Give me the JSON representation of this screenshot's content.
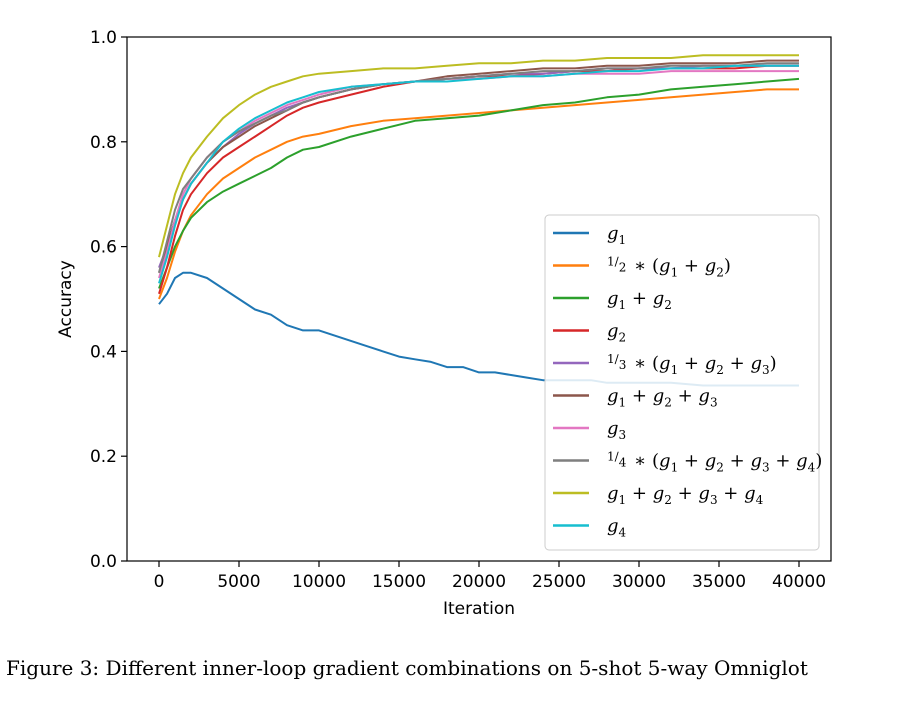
{
  "caption": "Figure 3: Different inner-loop gradient combinations on 5-shot 5-way Omniglot",
  "chart_data": {
    "type": "line",
    "title": "",
    "xlabel": "Iteration",
    "ylabel": "Accuracy",
    "xlim": [
      -2000,
      42000
    ],
    "ylim": [
      0.0,
      1.0
    ],
    "xticks": [
      0,
      5000,
      10000,
      15000,
      20000,
      25000,
      30000,
      35000,
      40000
    ],
    "xtick_labels": [
      "0",
      "5000",
      "10000",
      "15000",
      "20000",
      "25000",
      "30000",
      "35000",
      "40000"
    ],
    "yticks": [
      0.0,
      0.2,
      0.4,
      0.6,
      0.8,
      1.0
    ],
    "ytick_labels": [
      "0.0",
      "0.2",
      "0.4",
      "0.6",
      "0.8",
      "1.0"
    ],
    "grid": false,
    "legend_position": "lower-right",
    "series": [
      {
        "name": "g1",
        "legend_math": {
          "pre": "",
          "terms": [
            1
          ]
        },
        "color": "#1f77b4",
        "x": [
          0,
          500,
          1000,
          1500,
          2000,
          3000,
          4000,
          5000,
          6000,
          7000,
          8000,
          9000,
          10000,
          11000,
          12000,
          13000,
          14000,
          15000,
          16000,
          17000,
          18000,
          19000,
          20000,
          21000,
          22000,
          23000,
          24000,
          25000,
          26000,
          27000,
          28000,
          29000,
          30000,
          32000,
          34000,
          36000,
          38000,
          40000
        ],
        "y": [
          0.49,
          0.51,
          0.54,
          0.55,
          0.55,
          0.54,
          0.52,
          0.5,
          0.48,
          0.47,
          0.45,
          0.44,
          0.44,
          0.43,
          0.42,
          0.41,
          0.4,
          0.39,
          0.385,
          0.38,
          0.37,
          0.37,
          0.36,
          0.36,
          0.355,
          0.35,
          0.345,
          0.345,
          0.345,
          0.345,
          0.34,
          0.34,
          0.34,
          0.34,
          0.335,
          0.335,
          0.335,
          0.335
        ]
      },
      {
        "name": "1/2*(g1+g2)",
        "legend_math": {
          "pre": "1/2",
          "terms": [
            1,
            2
          ]
        },
        "color": "#ff7f0e",
        "x": [
          0,
          500,
          1000,
          1500,
          2000,
          3000,
          4000,
          5000,
          6000,
          7000,
          8000,
          9000,
          10000,
          12000,
          14000,
          16000,
          18000,
          20000,
          22000,
          24000,
          26000,
          28000,
          30000,
          32000,
          34000,
          36000,
          38000,
          40000
        ],
        "y": [
          0.5,
          0.54,
          0.59,
          0.63,
          0.66,
          0.7,
          0.73,
          0.75,
          0.77,
          0.785,
          0.8,
          0.81,
          0.815,
          0.83,
          0.84,
          0.845,
          0.85,
          0.855,
          0.86,
          0.865,
          0.87,
          0.875,
          0.88,
          0.885,
          0.89,
          0.895,
          0.9,
          0.9
        ]
      },
      {
        "name": "g1+g2",
        "legend_math": {
          "pre": "",
          "terms": [
            1,
            2
          ]
        },
        "color": "#2ca02c",
        "x": [
          0,
          500,
          1000,
          1500,
          2000,
          3000,
          4000,
          5000,
          6000,
          7000,
          8000,
          9000,
          10000,
          12000,
          14000,
          16000,
          18000,
          20000,
          22000,
          24000,
          26000,
          28000,
          30000,
          32000,
          34000,
          36000,
          38000,
          40000
        ],
        "y": [
          0.52,
          0.56,
          0.6,
          0.63,
          0.655,
          0.685,
          0.705,
          0.72,
          0.735,
          0.75,
          0.77,
          0.785,
          0.79,
          0.81,
          0.825,
          0.84,
          0.845,
          0.85,
          0.86,
          0.87,
          0.875,
          0.885,
          0.89,
          0.9,
          0.905,
          0.91,
          0.915,
          0.92
        ]
      },
      {
        "name": "g2",
        "legend_math": {
          "pre": "",
          "terms": [
            2
          ]
        },
        "color": "#d62728",
        "x": [
          0,
          500,
          1000,
          1500,
          2000,
          3000,
          4000,
          5000,
          6000,
          7000,
          8000,
          9000,
          10000,
          12000,
          14000,
          16000,
          18000,
          20000,
          22000,
          24000,
          26000,
          28000,
          30000,
          32000,
          34000,
          36000,
          38000,
          40000
        ],
        "y": [
          0.51,
          0.56,
          0.62,
          0.67,
          0.7,
          0.74,
          0.77,
          0.79,
          0.81,
          0.83,
          0.85,
          0.865,
          0.875,
          0.89,
          0.905,
          0.915,
          0.92,
          0.925,
          0.925,
          0.93,
          0.935,
          0.935,
          0.94,
          0.94,
          0.94,
          0.94,
          0.945,
          0.945
        ]
      },
      {
        "name": "1/3*(g1+g2+g3)",
        "legend_math": {
          "pre": "1/3",
          "terms": [
            1,
            2,
            3
          ]
        },
        "color": "#9467bd",
        "x": [
          0,
          500,
          1000,
          1500,
          2000,
          3000,
          4000,
          5000,
          6000,
          7000,
          8000,
          9000,
          10000,
          12000,
          14000,
          16000,
          18000,
          20000,
          22000,
          24000,
          26000,
          28000,
          30000,
          32000,
          34000,
          36000,
          38000,
          40000
        ],
        "y": [
          0.56,
          0.6,
          0.65,
          0.69,
          0.72,
          0.76,
          0.79,
          0.815,
          0.835,
          0.85,
          0.865,
          0.875,
          0.885,
          0.9,
          0.91,
          0.915,
          0.92,
          0.925,
          0.93,
          0.93,
          0.935,
          0.94,
          0.94,
          0.94,
          0.945,
          0.945,
          0.945,
          0.945
        ]
      },
      {
        "name": "g1+g2+g3",
        "legend_math": {
          "pre": "",
          "terms": [
            1,
            2,
            3
          ]
        },
        "color": "#8c564b",
        "x": [
          0,
          500,
          1000,
          1500,
          2000,
          3000,
          4000,
          5000,
          6000,
          7000,
          8000,
          9000,
          10000,
          12000,
          14000,
          16000,
          18000,
          20000,
          22000,
          24000,
          26000,
          28000,
          30000,
          32000,
          34000,
          36000,
          38000,
          40000
        ],
        "y": [
          0.55,
          0.6,
          0.65,
          0.69,
          0.72,
          0.76,
          0.79,
          0.81,
          0.83,
          0.845,
          0.86,
          0.875,
          0.885,
          0.9,
          0.91,
          0.915,
          0.925,
          0.93,
          0.935,
          0.94,
          0.94,
          0.945,
          0.945,
          0.95,
          0.95,
          0.95,
          0.955,
          0.955
        ]
      },
      {
        "name": "g3",
        "legend_math": {
          "pre": "",
          "terms": [
            3
          ]
        },
        "color": "#e377c2",
        "x": [
          0,
          500,
          1000,
          1500,
          2000,
          3000,
          4000,
          5000,
          6000,
          7000,
          8000,
          9000,
          10000,
          12000,
          14000,
          16000,
          18000,
          20000,
          22000,
          24000,
          26000,
          28000,
          30000,
          32000,
          34000,
          36000,
          38000,
          40000
        ],
        "y": [
          0.54,
          0.59,
          0.65,
          0.7,
          0.73,
          0.77,
          0.8,
          0.82,
          0.84,
          0.855,
          0.87,
          0.88,
          0.89,
          0.905,
          0.91,
          0.915,
          0.92,
          0.92,
          0.925,
          0.925,
          0.93,
          0.93,
          0.93,
          0.935,
          0.935,
          0.935,
          0.935,
          0.935
        ]
      },
      {
        "name": "1/4*(g1+g2+g3+g4)",
        "legend_math": {
          "pre": "1/4",
          "terms": [
            1,
            2,
            3,
            4
          ]
        },
        "color": "#7f7f7f",
        "x": [
          0,
          500,
          1000,
          1500,
          2000,
          3000,
          4000,
          5000,
          6000,
          7000,
          8000,
          9000,
          10000,
          12000,
          14000,
          16000,
          18000,
          20000,
          22000,
          24000,
          26000,
          28000,
          30000,
          32000,
          34000,
          36000,
          38000,
          40000
        ],
        "y": [
          0.55,
          0.61,
          0.67,
          0.71,
          0.73,
          0.77,
          0.8,
          0.82,
          0.835,
          0.85,
          0.86,
          0.875,
          0.885,
          0.9,
          0.91,
          0.915,
          0.92,
          0.925,
          0.93,
          0.935,
          0.935,
          0.94,
          0.94,
          0.945,
          0.945,
          0.945,
          0.95,
          0.95
        ]
      },
      {
        "name": "g1+g2+g3+g4",
        "legend_math": {
          "pre": "",
          "terms": [
            1,
            2,
            3,
            4
          ]
        },
        "color": "#bcbd22",
        "x": [
          0,
          500,
          1000,
          1500,
          2000,
          3000,
          4000,
          5000,
          6000,
          7000,
          8000,
          9000,
          10000,
          12000,
          14000,
          16000,
          18000,
          20000,
          22000,
          24000,
          26000,
          28000,
          30000,
          32000,
          34000,
          36000,
          38000,
          40000
        ],
        "y": [
          0.58,
          0.64,
          0.7,
          0.74,
          0.77,
          0.81,
          0.845,
          0.87,
          0.89,
          0.905,
          0.915,
          0.925,
          0.93,
          0.935,
          0.94,
          0.94,
          0.945,
          0.95,
          0.95,
          0.955,
          0.955,
          0.96,
          0.96,
          0.96,
          0.965,
          0.965,
          0.965,
          0.965
        ]
      },
      {
        "name": "g4",
        "legend_math": {
          "pre": "",
          "terms": [
            4
          ]
        },
        "color": "#17becf",
        "x": [
          0,
          500,
          1000,
          1500,
          2000,
          3000,
          4000,
          5000,
          6000,
          7000,
          8000,
          9000,
          10000,
          12000,
          14000,
          16000,
          18000,
          20000,
          22000,
          24000,
          26000,
          28000,
          30000,
          32000,
          34000,
          36000,
          38000,
          40000
        ],
        "y": [
          0.53,
          0.58,
          0.64,
          0.69,
          0.72,
          0.76,
          0.8,
          0.825,
          0.845,
          0.86,
          0.875,
          0.885,
          0.895,
          0.905,
          0.91,
          0.915,
          0.915,
          0.92,
          0.925,
          0.925,
          0.93,
          0.935,
          0.935,
          0.94,
          0.94,
          0.945,
          0.945,
          0.945
        ]
      }
    ]
  }
}
